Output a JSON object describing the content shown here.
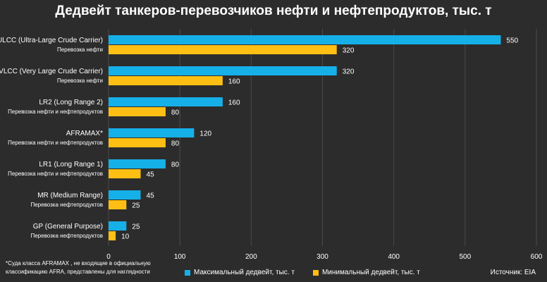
{
  "chart_data": {
    "type": "bar",
    "orientation": "horizontal",
    "title": "Дедвейт танкеров-перевозчиков нефти и нефтепродуктов, тыс. т",
    "categories": [
      "ULCC (Ultra-Large Crude Carrier)",
      "VLCC (Very Large Crude Carrier)",
      "LR2 (Long Range 2)",
      "AFRAMAX*",
      "LR1 (Long Range 1)",
      "MR (Medium Range)",
      "GP (General Purpose)"
    ],
    "subcategories": [
      "Перевозка нефти",
      "Перевозка нефти",
      "Перевозка нефти и нефтепродуктов",
      "Перевозка нефти и нефтепродуктов",
      "Перевозка нефти и нефтепродуктов",
      "Перевозка нефтепродуктов",
      "Перевозка нефтепродуктов"
    ],
    "series": [
      {
        "name": "Максимальный дедвейт, тыс. т",
        "color": "#16b0e8",
        "values": [
          550,
          320,
          160,
          120,
          80,
          45,
          25
        ]
      },
      {
        "name": "Минимальный дедвейт, тыс. т",
        "color": "#fdbf13",
        "values": [
          320,
          160,
          80,
          80,
          45,
          25,
          10
        ]
      }
    ],
    "xlim": [
      0,
      600
    ],
    "xticks": [
      0,
      100,
      200,
      300,
      400,
      500,
      600
    ],
    "grid": true,
    "legend_position": "bottom"
  },
  "footnote": "*Суда класса AFRAMAX , не входящие в официальную классификацию AFRA, представлены для наглядности",
  "source": "Источник: EIA"
}
